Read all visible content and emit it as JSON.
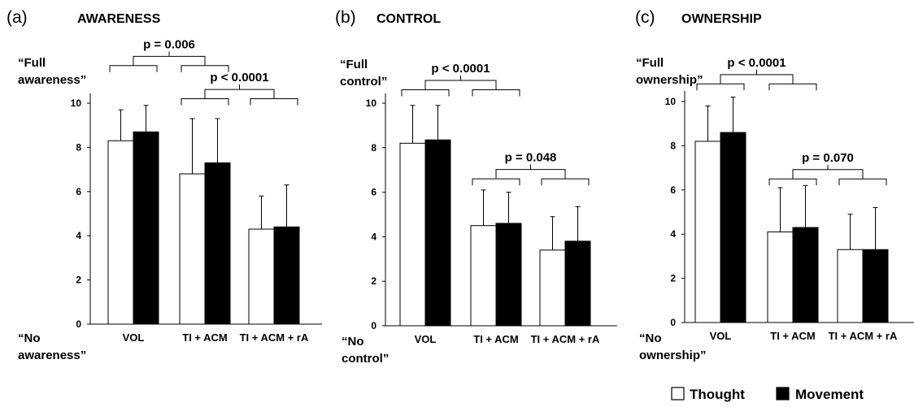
{
  "legend": [
    {
      "name": "Thought",
      "color": "#ffffff"
    },
    {
      "name": "Movement",
      "color": "#000000"
    }
  ],
  "chart_data": [
    {
      "type": "bar",
      "panel": "(a)",
      "title": "AWARENESS",
      "top_label": [
        "“Full",
        "awareness”"
      ],
      "bottom_label": [
        "“No",
        "awareness”"
      ],
      "categories": [
        "VOL",
        "TI + ACM",
        "TI + ACM + rA"
      ],
      "ylim": [
        0,
        10
      ],
      "yticks": [
        0,
        2,
        4,
        6,
        8,
        10
      ],
      "series": [
        {
          "name": "Thought",
          "values": [
            8.3,
            6.8,
            4.3
          ],
          "error": [
            1.4,
            2.5,
            1.5
          ]
        },
        {
          "name": "Movement",
          "values": [
            8.7,
            7.3,
            4.4
          ],
          "error": [
            1.2,
            2.0,
            1.9
          ]
        }
      ],
      "comparisons": [
        {
          "label": "p = 0.006",
          "groups": [
            0,
            1
          ],
          "level": 12.1
        },
        {
          "label": "p < 0.0001",
          "groups": [
            1,
            2
          ],
          "level": 10.6
        }
      ]
    },
    {
      "type": "bar",
      "panel": "(b)",
      "title": "CONTROL",
      "top_label": [
        "“Full",
        "control”"
      ],
      "bottom_label": [
        "“No",
        "control”"
      ],
      "categories": [
        "VOL",
        "TI + ACM",
        "TI + ACM + rA"
      ],
      "ylim": [
        0,
        10
      ],
      "yticks": [
        0,
        2,
        4,
        6,
        8,
        10
      ],
      "series": [
        {
          "name": "Thought",
          "values": [
            8.2,
            4.5,
            3.4
          ],
          "error": [
            1.7,
            1.6,
            1.5
          ]
        },
        {
          "name": "Movement",
          "values": [
            8.35,
            4.6,
            3.8
          ],
          "error": [
            1.55,
            1.4,
            1.55
          ]
        }
      ],
      "comparisons": [
        {
          "label": "p < 0.0001",
          "groups": [
            0,
            1
          ],
          "level": 11.0
        },
        {
          "label": "p = 0.048",
          "groups": [
            1,
            2
          ],
          "level": 7.0
        }
      ]
    },
    {
      "type": "bar",
      "panel": "(c)",
      "title": "OWNERSHIP",
      "top_label": [
        "“Full",
        "ownership”"
      ],
      "bottom_label": [
        "“No",
        "ownership”"
      ],
      "categories": [
        "VOL",
        "TI + ACM",
        "TI + ACM + rA"
      ],
      "ylim": [
        0,
        10
      ],
      "yticks": [
        0,
        2,
        4,
        6,
        8,
        10
      ],
      "series": [
        {
          "name": "Thought",
          "values": [
            8.2,
            4.1,
            3.3
          ],
          "error": [
            1.6,
            2.0,
            1.6
          ]
        },
        {
          "name": "Movement",
          "values": [
            8.6,
            4.3,
            3.3
          ],
          "error": [
            1.6,
            1.9,
            1.9
          ]
        }
      ],
      "comparisons": [
        {
          "label": "p < 0.0001",
          "groups": [
            0,
            1
          ],
          "level": 11.2
        },
        {
          "label": "p = 0.070",
          "groups": [
            1,
            2
          ],
          "level": 6.9
        }
      ]
    }
  ]
}
